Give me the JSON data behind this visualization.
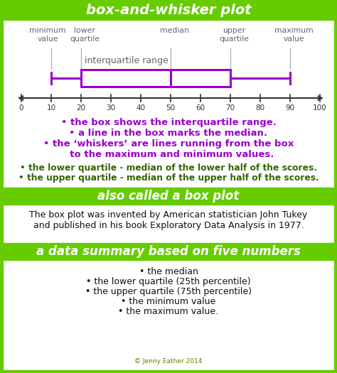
{
  "title": "box-and-whisker plot",
  "title_bg": "#66cc00",
  "title_color": "white",
  "section2_title": "also called a box plot",
  "section3_title": "a data summary based on five numbers",
  "background_color": "white",
  "border_color": "#66cc00",
  "box_color": "#9900cc",
  "axis_color": "#666666",
  "purple_text_color": "#9900cc",
  "green_text_color": "#336600",
  "black_text_color": "#111111",
  "whisker_min": 10,
  "whisker_max": 90,
  "q1": 20,
  "median": 50,
  "q3": 70,
  "axis_ticks": [
    0,
    10,
    20,
    30,
    40,
    50,
    60,
    70,
    80,
    90,
    100
  ],
  "iqr_label": "interquartile range",
  "purple_bullets": [
    "• the box shows the interquartile range.",
    "• a line in the box marks the median.",
    "• the ‘whiskers’ are lines running from the box",
    "  to the maximum and minimum values."
  ],
  "green_bullets": [
    "• the lower quartile - median of the lower half of the scores.",
    "• the upper quartile - median of the upper half of the scores."
  ],
  "john_tukey_text": "The box plot was invented by American statistician John Tukey\nand published in his book Exploratory Data Analysis in 1977.",
  "five_numbers_bullets": [
    "• the median",
    "• the lower quartile (25th percentile)",
    "• the upper quartile (75th percentile)",
    "• the minimum value",
    "• the maximum value."
  ],
  "copyright": "© Jenny Eather 2014",
  "fig_width": 4.74,
  "fig_height": 5.25,
  "dpi": 100
}
